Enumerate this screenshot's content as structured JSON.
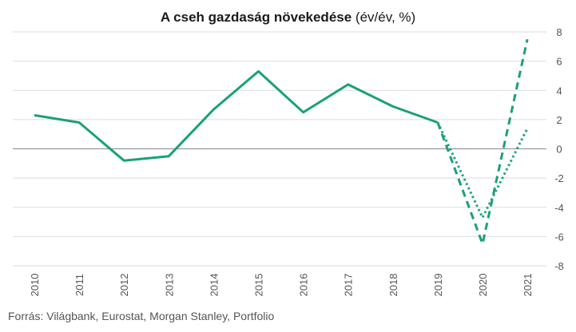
{
  "title": {
    "bold": "A cseh gazdaság növekedése",
    "normal": " (év/év, %)"
  },
  "source": "Forrás: Világbank, Eurostat, Morgan Stanley, Portfolio",
  "colors": {
    "series": "#1aa07a",
    "grid": "#dddddd",
    "zero_line": "#888888",
    "text": "#555555"
  },
  "chart_data": {
    "type": "line",
    "title": "A cseh gazdaság növekedése (év/év, %)",
    "x": [
      "2010",
      "2011",
      "2012",
      "2013",
      "2014",
      "2015",
      "2016",
      "2017",
      "2018",
      "2019",
      "2020",
      "2021"
    ],
    "ylim": [
      -8,
      8
    ],
    "yticks": [
      8,
      6,
      4,
      2,
      0,
      -2,
      -4,
      -6,
      -8
    ],
    "grid": true,
    "y_axis_side": "right",
    "series": [
      {
        "style": "solid",
        "x": [
          "2010",
          "2011",
          "2012",
          "2013",
          "2014",
          "2015",
          "2016",
          "2017",
          "2018",
          "2019"
        ],
        "values": [
          2.3,
          1.8,
          -0.8,
          -0.5,
          2.7,
          5.3,
          2.5,
          4.4,
          2.9,
          1.8
        ]
      },
      {
        "style": "dashed",
        "x": [
          "2019",
          "2020",
          "2021"
        ],
        "values": [
          1.8,
          -6.5,
          7.5
        ]
      },
      {
        "style": "dotted",
        "x": [
          "2019",
          "2020",
          "2021"
        ],
        "values": [
          1.8,
          -4.7,
          1.4
        ]
      }
    ]
  }
}
